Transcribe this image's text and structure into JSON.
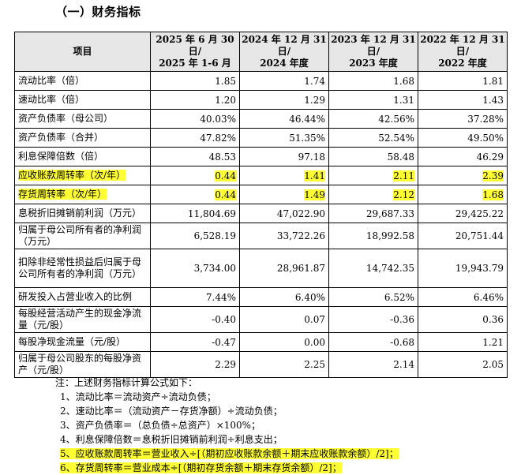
{
  "section_title": "（一）财务指标",
  "table": {
    "headers": [
      {
        "line1": "项目",
        "line2": ""
      },
      {
        "line1": "2025 年 6 月 30 日/",
        "line2": "2025 年 1-6 月"
      },
      {
        "line1": "2024 年 12 月 31 日/",
        "line2": "2024 年度"
      },
      {
        "line1": "2023 年 12 月 31 日/",
        "line2": "2023 年度"
      },
      {
        "line1": "2022 年 12 月 31 日/",
        "line2": "2022 年度"
      }
    ],
    "rows": [
      {
        "label": "流动比率（倍）",
        "values": [
          "1.85",
          "1.74",
          "1.68",
          "1.81"
        ]
      },
      {
        "label": "速动比率（倍）",
        "values": [
          "1.20",
          "1.29",
          "1.31",
          "1.43"
        ]
      },
      {
        "label": "资产负债率（母公司）",
        "values": [
          "40.03%",
          "46.44%",
          "42.56%",
          "37.28%"
        ]
      },
      {
        "label": "资产负债率（合并）",
        "values": [
          "47.82%",
          "51.35%",
          "52.54%",
          "49.50%"
        ]
      },
      {
        "label": "利息保障倍数（倍）",
        "values": [
          "48.53",
          "97.18",
          "58.48",
          "46.29"
        ]
      },
      {
        "label": "应收账款周转率（次/年）",
        "values": [
          "0.44",
          "1.41",
          "2.11",
          "2.39"
        ]
      },
      {
        "label": "存货周转率（次/年）",
        "values": [
          "0.44",
          "1.49",
          "2.12",
          "1.68"
        ]
      },
      {
        "label": "息税折旧摊销前利润（万元）",
        "values": [
          "11,804.69",
          "47,022.90",
          "29,687.33",
          "29,425.22"
        ]
      },
      {
        "label": "归属于母公司所有者的净利润（万元）",
        "values": [
          "6,528.19",
          "33,722.26",
          "18,992.58",
          "20,751.44"
        ]
      },
      {
        "label": "扣除非经常性损益后归属于母公司所有者的净利润（万元）",
        "values": [
          "3,734.00",
          "28,961.87",
          "14,742.35",
          "19,943.79"
        ]
      },
      {
        "label": "研发投入占营业收入的比例",
        "values": [
          "7.44%",
          "6.40%",
          "6.52%",
          "6.46%"
        ]
      },
      {
        "label": "每股经营活动产生的现金净流量（元/股）",
        "values": [
          "-0.40",
          "0.07",
          "-0.36",
          "0.36"
        ]
      },
      {
        "label": "每股净现金流量（元/股）",
        "values": [
          "-0.47",
          "0.00",
          "-0.68",
          "1.21"
        ]
      },
      {
        "label": "归属于母公司股东的每股净资产（元/股）",
        "values": [
          "2.29",
          "2.25",
          "2.14",
          "2.05"
        ]
      }
    ]
  },
  "notes": {
    "intro": "注：上述财务指标计算公式如下：",
    "items": [
      "1、流动比率＝流动资产÷流动负债；",
      "2、速动比率＝（流动资产－存货净额）÷流动负债；",
      "3、资产负债率＝（总负债÷总资产）×100%；",
      "4、利息保障倍数＝息税折旧摊销前利润÷利息支出；",
      "5、应收账款周转率＝营业收入÷[（期初应收账款余额＋期末应收账款余额）/2]；",
      "6、存货周转率＝营业成本÷[（期初存货余额＋期末存货余额）/2]；"
    ]
  },
  "highlight_color": "#ffff33"
}
